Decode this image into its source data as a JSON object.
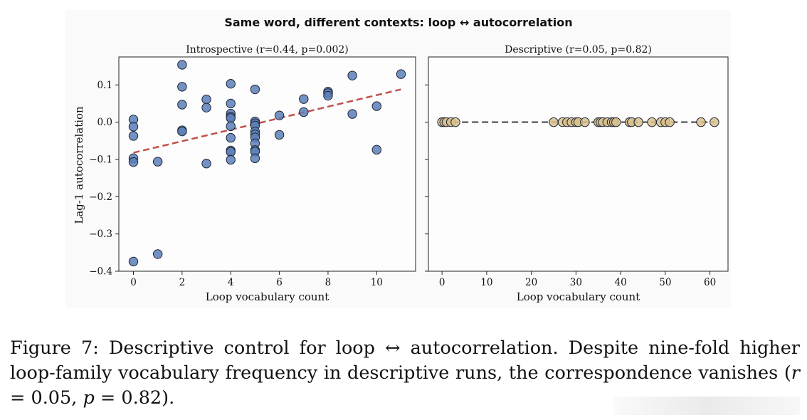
{
  "figure": {
    "suptitle": "Same word, different contexts: loop ↔ autocorrelation",
    "caption_intro": "Figure 7: Descriptive control for loop ↔ autocorrelation. Despite nine-fold higher loop-family vocabulary frequency in descriptive runs, the correspondence vanishes (",
    "caption_r_var": "r",
    "caption_r_val": " = 0.05,",
    "caption_p_var": "p",
    "caption_p_val": " = 0.82)."
  },
  "chart_data": [
    {
      "type": "scatter",
      "title": "Introspective (r=0.44, p=0.002)",
      "xlabel": "Loop vocabulary count",
      "ylabel": "Lag-1 autocorrelation",
      "xlim": [
        -0.6,
        11.6
      ],
      "ylim": [
        -0.4,
        0.175
      ],
      "xticks": [
        0,
        2,
        4,
        6,
        8,
        10
      ],
      "yticks": [
        -0.4,
        -0.3,
        -0.2,
        -0.1,
        0.0,
        0.1
      ],
      "ytick_labels": [
        "−0.4",
        "−0.3",
        "−0.2",
        "−0.1",
        "0.0",
        "0.1"
      ],
      "grid": false,
      "point_color": "#5b7fb8",
      "trend_color": "#c0504d",
      "trend_line": {
        "x": [
          0,
          11
        ],
        "y": [
          -0.082,
          0.088
        ]
      },
      "points": [
        {
          "x": 0,
          "y": 0.007
        },
        {
          "x": 0,
          "y": -0.012
        },
        {
          "x": 0,
          "y": -0.037
        },
        {
          "x": 0,
          "y": -0.097
        },
        {
          "x": 0,
          "y": -0.107
        },
        {
          "x": 0,
          "y": -0.374
        },
        {
          "x": 1,
          "y": -0.106
        },
        {
          "x": 1,
          "y": -0.354
        },
        {
          "x": 2,
          "y": 0.154
        },
        {
          "x": 2,
          "y": 0.095
        },
        {
          "x": 2,
          "y": 0.047
        },
        {
          "x": 2,
          "y": -0.022
        },
        {
          "x": 2,
          "y": -0.025
        },
        {
          "x": 3,
          "y": 0.061
        },
        {
          "x": 3,
          "y": 0.039
        },
        {
          "x": 3,
          "y": -0.111
        },
        {
          "x": 4,
          "y": 0.103
        },
        {
          "x": 4,
          "y": 0.05
        },
        {
          "x": 4,
          "y": 0.023
        },
        {
          "x": 4,
          "y": 0.015
        },
        {
          "x": 4,
          "y": 0.011
        },
        {
          "x": 4,
          "y": -0.011
        },
        {
          "x": 4,
          "y": -0.042
        },
        {
          "x": 4,
          "y": -0.076
        },
        {
          "x": 4,
          "y": -0.08
        },
        {
          "x": 4,
          "y": -0.101
        },
        {
          "x": 5,
          "y": 0.088
        },
        {
          "x": 5,
          "y": 0.002
        },
        {
          "x": 5,
          "y": -0.003
        },
        {
          "x": 5,
          "y": -0.009
        },
        {
          "x": 5,
          "y": -0.025
        },
        {
          "x": 5,
          "y": -0.033
        },
        {
          "x": 5,
          "y": -0.041
        },
        {
          "x": 5,
          "y": -0.057
        },
        {
          "x": 5,
          "y": -0.075
        },
        {
          "x": 5,
          "y": -0.079
        },
        {
          "x": 5,
          "y": -0.097
        },
        {
          "x": 6,
          "y": 0.018
        },
        {
          "x": 6,
          "y": -0.034
        },
        {
          "x": 7,
          "y": 0.062
        },
        {
          "x": 7,
          "y": 0.027
        },
        {
          "x": 8,
          "y": 0.082
        },
        {
          "x": 8,
          "y": 0.078
        },
        {
          "x": 8,
          "y": 0.071
        },
        {
          "x": 9,
          "y": 0.125
        },
        {
          "x": 9,
          "y": 0.022
        },
        {
          "x": 10,
          "y": 0.043
        },
        {
          "x": 10,
          "y": -0.074
        },
        {
          "x": 11,
          "y": 0.129
        }
      ]
    },
    {
      "type": "scatter",
      "title": "Descriptive (r=0.05, p=0.82)",
      "xlabel": "Loop vocabulary count",
      "xlim": [
        -3.05,
        64.05
      ],
      "ylim": [
        -0.4,
        0.175
      ],
      "xticks": [
        0,
        10,
        20,
        30,
        40,
        50,
        60
      ],
      "grid": false,
      "shared_y": true,
      "point_color": "#d8c18c",
      "trend_color": "#666666",
      "trend_line": {
        "x": [
          0,
          61
        ],
        "y": [
          0,
          0
        ]
      },
      "points": [
        {
          "x": 0,
          "y": 0
        },
        {
          "x": 0.5,
          "y": 0
        },
        {
          "x": 1,
          "y": 0
        },
        {
          "x": 2,
          "y": 0
        },
        {
          "x": 3,
          "y": 0
        },
        {
          "x": 25,
          "y": 0
        },
        {
          "x": 27,
          "y": 0
        },
        {
          "x": 28,
          "y": 0
        },
        {
          "x": 29,
          "y": 0
        },
        {
          "x": 30,
          "y": 0
        },
        {
          "x": 30.5,
          "y": 0
        },
        {
          "x": 32,
          "y": 0
        },
        {
          "x": 35,
          "y": 0
        },
        {
          "x": 35.5,
          "y": 0
        },
        {
          "x": 36,
          "y": 0
        },
        {
          "x": 37,
          "y": 0
        },
        {
          "x": 38,
          "y": 0
        },
        {
          "x": 38.5,
          "y": 0
        },
        {
          "x": 39,
          "y": 0
        },
        {
          "x": 42,
          "y": 0
        },
        {
          "x": 42.5,
          "y": 0
        },
        {
          "x": 44,
          "y": 0
        },
        {
          "x": 47,
          "y": 0
        },
        {
          "x": 49,
          "y": 0
        },
        {
          "x": 50,
          "y": 0
        },
        {
          "x": 51,
          "y": 0
        },
        {
          "x": 58,
          "y": 0
        },
        {
          "x": 61,
          "y": 0
        }
      ]
    }
  ]
}
